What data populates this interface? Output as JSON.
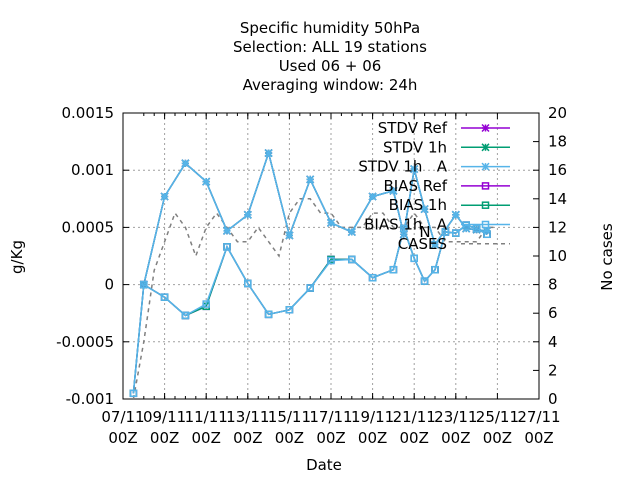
{
  "chart_data": {
    "type": "line",
    "title_lines": [
      "Specific humidity 50hPa",
      "Selection: ALL      19 stations",
      "Used  06 + 06",
      "Averaging window: 24h"
    ],
    "xlabel": "Date",
    "ylabel": "g/Kg",
    "y2label": "No cases",
    "ylim": [
      -0.001,
      0.0015
    ],
    "y2lim": [
      0,
      20
    ],
    "grid": true,
    "legend_placement": "top-right",
    "x_ticks": [
      {
        "line1": "07/11",
        "line2": "00Z"
      },
      {
        "line1": "09/11",
        "line2": "00Z"
      },
      {
        "line1": "11/11",
        "line2": "00Z"
      },
      {
        "line1": "13/11",
        "line2": "00Z"
      },
      {
        "line1": "15/11",
        "line2": "00Z"
      },
      {
        "line1": "17/11",
        "line2": "00Z"
      },
      {
        "line1": "19/11",
        "line2": "00Z"
      },
      {
        "line1": "21/11",
        "line2": "00Z"
      },
      {
        "line1": "23/11",
        "line2": "00Z"
      },
      {
        "line1": "25/11",
        "line2": "00Z"
      },
      {
        "line1": "27/11",
        "line2": "00Z"
      }
    ],
    "y_ticks": [
      "0.0015",
      "0.001",
      "0.0005",
      "0",
      "-0.0005",
      "-0.001"
    ],
    "y2_ticks": [
      "20",
      "18",
      "16",
      "14",
      "12",
      "10",
      "8",
      "6",
      "4",
      "2",
      "0"
    ],
    "x_days": [
      8,
      8.5,
      9,
      9.5,
      10,
      10.5,
      11,
      11.5,
      12,
      12.5,
      13,
      13.5,
      14,
      14.5,
      15,
      15.5,
      16,
      16.5,
      17,
      17.5,
      18,
      18.5,
      19,
      19.5,
      20,
      20.5,
      21,
      21.5,
      22,
      22.5,
      23,
      23.5
    ],
    "series": [
      {
        "name": "STDV Ref",
        "axis": "y",
        "color": "#9400d3",
        "marker": "star",
        "x": [
          8,
          9,
          10,
          11,
          12,
          13,
          14,
          15,
          16,
          17,
          18,
          19,
          20,
          20.5,
          21,
          21.5,
          22,
          23,
          23.5,
          24,
          24.5
        ],
        "values": [
          0.0,
          0.00077,
          0.00106,
          0.0009,
          0.00047,
          0.00061,
          0.00115,
          0.00043,
          0.00092,
          0.00054,
          0.00046,
          0.00077,
          0.00082,
          0.00044,
          0.00101,
          0.00066,
          0.00035,
          0.00061,
          0.00049,
          0.00048,
          0.00047
        ]
      },
      {
        "name": "STDV 1h",
        "axis": "y",
        "color": "#009e73",
        "marker": "star",
        "x": [
          8,
          9,
          10,
          11,
          12,
          13,
          14,
          15,
          16,
          17,
          18,
          19,
          20,
          20.5,
          21,
          21.5,
          22,
          23,
          23.5,
          24,
          24.5
        ],
        "values": [
          0.0,
          0.00077,
          0.00106,
          0.0009,
          0.00047,
          0.00061,
          0.00115,
          0.00043,
          0.00092,
          0.00054,
          0.00046,
          0.00077,
          0.00082,
          0.00044,
          0.00101,
          0.00066,
          0.00035,
          0.00061,
          0.00049,
          0.00048,
          0.00047
        ]
      },
      {
        "name": "STDV 1h   A",
        "axis": "y",
        "color": "#56b4e9",
        "marker": "star",
        "x": [
          8,
          9,
          10,
          11,
          12,
          13,
          14,
          15,
          16,
          17,
          18,
          19,
          20,
          20.5,
          21,
          21.5,
          22,
          23,
          23.5,
          24,
          24.5
        ],
        "values": [
          0.0,
          0.00077,
          0.00106,
          0.0009,
          0.00047,
          0.00061,
          0.00115,
          0.00043,
          0.00092,
          0.00054,
          0.00046,
          0.00077,
          0.00082,
          0.00044,
          0.00101,
          0.00066,
          0.00035,
          0.00061,
          0.00049,
          0.00048,
          0.00047
        ]
      },
      {
        "name": "BIAS Ref",
        "axis": "y",
        "color": "#9400d3",
        "marker": "square",
        "x": [
          7.5,
          8,
          9,
          10,
          11,
          12,
          13,
          14,
          15,
          16,
          17,
          18,
          19,
          20,
          20.5,
          21,
          21.5,
          22,
          22.5,
          23,
          23.5,
          24,
          24.5
        ],
        "values": [
          -0.00095,
          0.0,
          -0.00011,
          -0.00027,
          -0.00019,
          0.00033,
          1e-05,
          -0.00026,
          -0.00022,
          -3e-05,
          0.00022,
          0.00022,
          6e-05,
          0.00013,
          0.00049,
          0.00023,
          3e-05,
          0.00013,
          0.00046,
          0.00045,
          0.00052,
          0.00049,
          0.00044
        ]
      },
      {
        "name": "BIAS 1h",
        "axis": "y",
        "color": "#009e73",
        "marker": "square",
        "x": [
          7.5,
          8,
          9,
          10,
          11,
          12,
          13,
          14,
          15,
          16,
          17,
          18,
          19,
          20,
          20.5,
          21,
          21.5,
          22,
          22.5,
          23,
          23.5,
          24,
          24.5
        ],
        "values": [
          -0.00095,
          0.0,
          -0.00011,
          -0.00027,
          -0.00019,
          0.00033,
          1e-05,
          -0.00026,
          -0.00022,
          -3e-05,
          0.00022,
          0.00022,
          6e-05,
          0.00013,
          0.00049,
          0.00023,
          3e-05,
          0.00013,
          0.00046,
          0.00045,
          0.00052,
          0.00049,
          0.00044
        ]
      },
      {
        "name": "BIAS 1h   A",
        "axis": "y",
        "color": "#56b4e9",
        "marker": "square",
        "x": [
          7.5,
          8,
          9,
          10,
          11,
          12,
          13,
          14,
          15,
          16,
          17,
          18,
          19,
          20,
          20.5,
          21,
          21.5,
          22,
          22.5,
          23,
          23.5,
          24,
          24.5
        ],
        "values": [
          -0.00095,
          0.0,
          -0.00011,
          -0.00027,
          -0.00017,
          0.00033,
          1e-05,
          -0.00026,
          -0.00022,
          -3e-05,
          0.00021,
          0.00022,
          6e-05,
          0.00013,
          0.00049,
          0.00023,
          3e-05,
          0.00013,
          0.00046,
          0.00045,
          0.00052,
          0.00049,
          0.00044
        ]
      },
      {
        "name": "CASES",
        "axis": "y2",
        "color": "#808080",
        "marker": "none",
        "dashed": true,
        "x": [
          7.5,
          8,
          8.5,
          9,
          9.5,
          10,
          10.5,
          11,
          11.5,
          12,
          12.5,
          13,
          13.5,
          14,
          14.5,
          15,
          15.5,
          16,
          16.5,
          17,
          17.5,
          18,
          18.5,
          19,
          19.5,
          20,
          20.5,
          21,
          21.5,
          22,
          22.5,
          23,
          23.5,
          24,
          24.5,
          25
        ],
        "values": [
          0,
          4,
          9,
          11,
          13,
          12,
          10,
          12,
          13,
          12,
          11,
          11,
          12,
          11,
          10,
          13,
          14,
          14,
          13,
          13,
          12,
          12,
          12,
          13,
          13,
          12,
          12,
          13,
          12,
          12,
          11,
          11,
          11,
          11,
          12,
          12
        ]
      }
    ]
  },
  "legend": {
    "items": [
      {
        "label": "STDV Ref",
        "color": "#9400d3",
        "marker": "star"
      },
      {
        "label": "STDV 1h",
        "color": "#009e73",
        "marker": "star"
      },
      {
        "label": "STDV 1h   A",
        "color": "#56b4e9",
        "marker": "star"
      },
      {
        "label": "BIAS Ref",
        "color": "#9400d3",
        "marker": "square"
      },
      {
        "label": "BIAS 1h",
        "color": "#009e73",
        "marker": "square"
      },
      {
        "label": "BIAS 1h   A",
        "color": "#56b4e9",
        "marker": "square"
      },
      {
        "label": "CASES",
        "color": "#808080",
        "marker": "dashed"
      }
    ],
    "overlap_label": "N"
  }
}
